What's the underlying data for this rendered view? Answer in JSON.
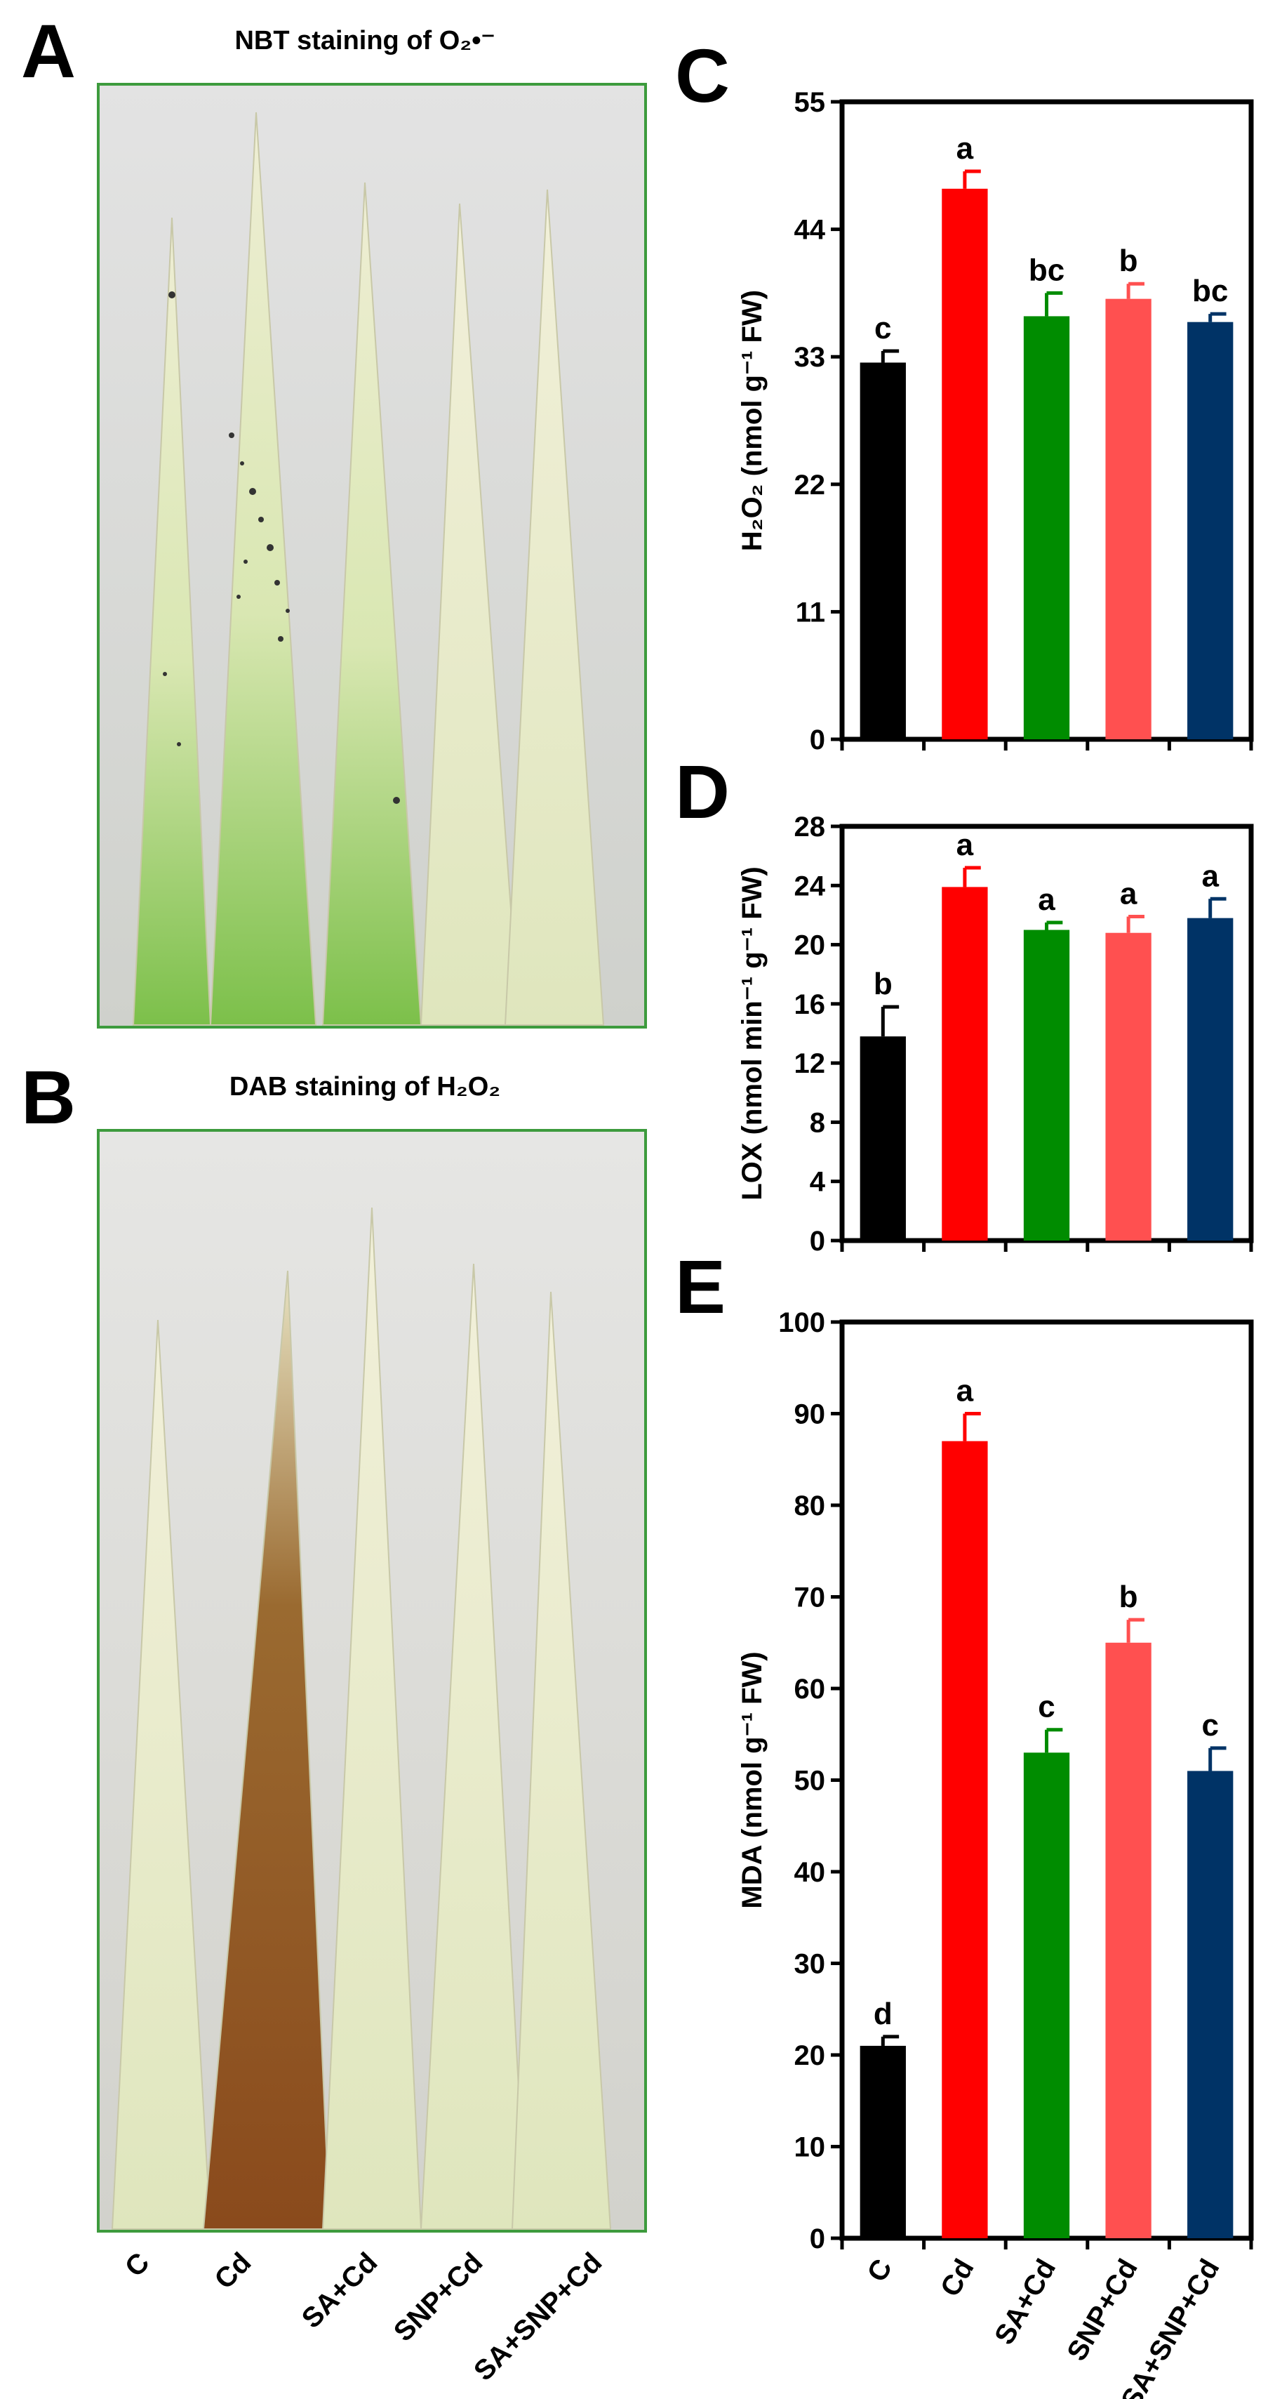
{
  "panels": {
    "A": {
      "letter": "A",
      "title": "NBT staining of O₂•⁻"
    },
    "B": {
      "letter": "B",
      "title": "DAB staining of H₂O₂"
    }
  },
  "photo_categories": [
    "C",
    "Cd",
    "SA+Cd",
    "SNP+Cd",
    "SA+SNP+Cd"
  ],
  "colors": {
    "C": "#000000",
    "Cd": "#ff0000",
    "SA+Cd": "#008c00",
    "SNP+Cd": "#ff5050",
    "SA+SNP+Cd": "#003366",
    "photo_frame": "#3d9b3d"
  },
  "chart_data": [
    {
      "panel": "C",
      "type": "bar",
      "ylabel": "H₂O₂ (nmol g⁻¹ FW)",
      "ylim": [
        0,
        55
      ],
      "yticks": [
        0,
        11,
        22,
        33,
        44,
        55
      ],
      "categories": [
        "C",
        "Cd",
        "SA+Cd",
        "SNP+Cd",
        "SA+SNP+Cd"
      ],
      "values": [
        32.5,
        47.5,
        36.5,
        38.0,
        36.0
      ],
      "errors": [
        1.0,
        1.5,
        2.0,
        1.3,
        0.7
      ],
      "letters": [
        "c",
        "a",
        "bc",
        "b",
        "bc"
      ]
    },
    {
      "panel": "D",
      "type": "bar",
      "ylabel": "LOX (nmol min⁻¹ g⁻¹ FW)",
      "ylim": [
        0,
        28
      ],
      "yticks": [
        0,
        4,
        8,
        12,
        16,
        20,
        24,
        28
      ],
      "categories": [
        "C",
        "Cd",
        "SA+Cd",
        "SNP+Cd",
        "SA+SNP+Cd"
      ],
      "values": [
        13.8,
        23.9,
        21.0,
        20.8,
        21.8
      ],
      "errors": [
        2.0,
        1.3,
        0.5,
        1.1,
        1.3
      ],
      "letters": [
        "b",
        "a",
        "a",
        "a",
        "a"
      ]
    },
    {
      "panel": "E",
      "type": "bar",
      "ylabel": "MDA (nmol g⁻¹ FW)",
      "ylim": [
        0,
        100
      ],
      "yticks": [
        0,
        10,
        20,
        30,
        40,
        50,
        60,
        70,
        80,
        90,
        100
      ],
      "categories": [
        "C",
        "Cd",
        "SA+Cd",
        "SNP+Cd",
        "SA+SNP+Cd"
      ],
      "values": [
        21.0,
        87.0,
        53.0,
        65.0,
        51.0
      ],
      "errors": [
        1.0,
        3.0,
        2.5,
        2.5,
        2.5
      ],
      "letters": [
        "d",
        "a",
        "c",
        "b",
        "c"
      ]
    }
  ]
}
